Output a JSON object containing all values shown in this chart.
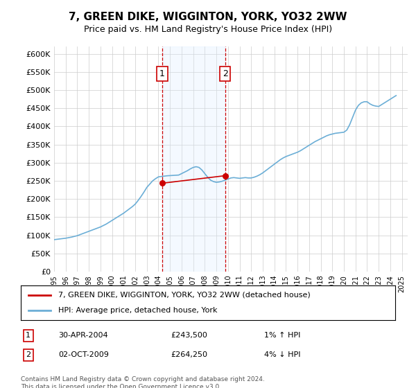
{
  "title": "7, GREEN DIKE, WIGGINTON, YORK, YO32 2WW",
  "subtitle": "Price paid vs. HM Land Registry's House Price Index (HPI)",
  "ylabel": "",
  "ylim": [
    0,
    620000
  ],
  "yticks": [
    0,
    50000,
    100000,
    150000,
    200000,
    250000,
    300000,
    350000,
    400000,
    450000,
    500000,
    550000,
    600000
  ],
  "xlim_start": 1995.0,
  "xlim_end": 2025.5,
  "xticks": [
    1995,
    1996,
    1997,
    1998,
    1999,
    2000,
    2001,
    2002,
    2003,
    2004,
    2005,
    2006,
    2007,
    2008,
    2009,
    2010,
    2011,
    2012,
    2013,
    2014,
    2015,
    2016,
    2017,
    2018,
    2019,
    2020,
    2021,
    2022,
    2023,
    2024,
    2025
  ],
  "hpi_color": "#6baed6",
  "sale_color": "#cc0000",
  "vline_color": "#cc0000",
  "shade_color": "#ddeeff",
  "grid_color": "#cccccc",
  "bg_color": "#ffffff",
  "sale1_x": 2004.33,
  "sale1_y": 243500,
  "sale1_label": "1",
  "sale1_date": "30-APR-2004",
  "sale1_price": "£243,500",
  "sale1_hpi": "1% ↑ HPI",
  "sale2_x": 2009.75,
  "sale2_y": 264250,
  "sale2_label": "2",
  "sale2_date": "02-OCT-2009",
  "sale2_price": "£264,250",
  "sale2_hpi": "4% ↓ HPI",
  "legend_line1": "7, GREEN DIKE, WIGGINTON, YORK, YO32 2WW (detached house)",
  "legend_line2": "HPI: Average price, detached house, York",
  "footnote": "Contains HM Land Registry data © Crown copyright and database right 2024.\nThis data is licensed under the Open Government Licence v3.0.",
  "hpi_data_x": [
    1995,
    1995.25,
    1995.5,
    1995.75,
    1996,
    1996.25,
    1996.5,
    1996.75,
    1997,
    1997.25,
    1997.5,
    1997.75,
    1998,
    1998.25,
    1998.5,
    1998.75,
    1999,
    1999.25,
    1999.5,
    1999.75,
    2000,
    2000.25,
    2000.5,
    2000.75,
    2001,
    2001.25,
    2001.5,
    2001.75,
    2002,
    2002.25,
    2002.5,
    2002.75,
    2003,
    2003.25,
    2003.5,
    2003.75,
    2004,
    2004.25,
    2004.5,
    2004.75,
    2005,
    2005.25,
    2005.5,
    2005.75,
    2006,
    2006.25,
    2006.5,
    2006.75,
    2007,
    2007.25,
    2007.5,
    2007.75,
    2008,
    2008.25,
    2008.5,
    2008.75,
    2009,
    2009.25,
    2009.5,
    2009.75,
    2010,
    2010.25,
    2010.5,
    2010.75,
    2011,
    2011.25,
    2011.5,
    2011.75,
    2012,
    2012.25,
    2012.5,
    2012.75,
    2013,
    2013.25,
    2013.5,
    2013.75,
    2014,
    2014.25,
    2014.5,
    2014.75,
    2015,
    2015.25,
    2015.5,
    2015.75,
    2016,
    2016.25,
    2016.5,
    2016.75,
    2017,
    2017.25,
    2017.5,
    2017.75,
    2018,
    2018.25,
    2018.5,
    2018.75,
    2019,
    2019.25,
    2019.5,
    2019.75,
    2020,
    2020.25,
    2020.5,
    2020.75,
    2021,
    2021.25,
    2021.5,
    2021.75,
    2022,
    2022.25,
    2022.5,
    2022.75,
    2023,
    2023.25,
    2023.5,
    2023.75,
    2024,
    2024.25,
    2024.5
  ],
  "hpi_data_y": [
    88000,
    89000,
    90000,
    91000,
    92000,
    93500,
    95000,
    97000,
    99000,
    102000,
    105000,
    108000,
    111000,
    114000,
    117000,
    120000,
    123000,
    127000,
    131000,
    136000,
    141000,
    146000,
    151000,
    156000,
    161000,
    167000,
    173000,
    179000,
    186000,
    196000,
    207000,
    219000,
    232000,
    241000,
    250000,
    256000,
    261000,
    262000,
    263000,
    264000,
    264500,
    265000,
    265500,
    266000,
    270000,
    274000,
    278000,
    283000,
    287000,
    289000,
    287000,
    280000,
    270000,
    260000,
    252000,
    248000,
    246000,
    247000,
    249000,
    252000,
    255000,
    258000,
    259000,
    258000,
    257000,
    258000,
    259000,
    258000,
    258000,
    260000,
    263000,
    267000,
    272000,
    278000,
    284000,
    290000,
    296000,
    302000,
    308000,
    313000,
    317000,
    320000,
    323000,
    326000,
    329000,
    333000,
    338000,
    343000,
    348000,
    353000,
    358000,
    362000,
    366000,
    370000,
    374000,
    377000,
    379000,
    381000,
    382000,
    383000,
    384000,
    390000,
    405000,
    425000,
    445000,
    458000,
    465000,
    468000,
    468000,
    462000,
    458000,
    456000,
    455000,
    460000,
    465000,
    470000,
    475000,
    480000,
    485000
  ],
  "sale_data_x": [
    2004.33,
    2009.75
  ],
  "sale_data_y": [
    243500,
    264250
  ]
}
